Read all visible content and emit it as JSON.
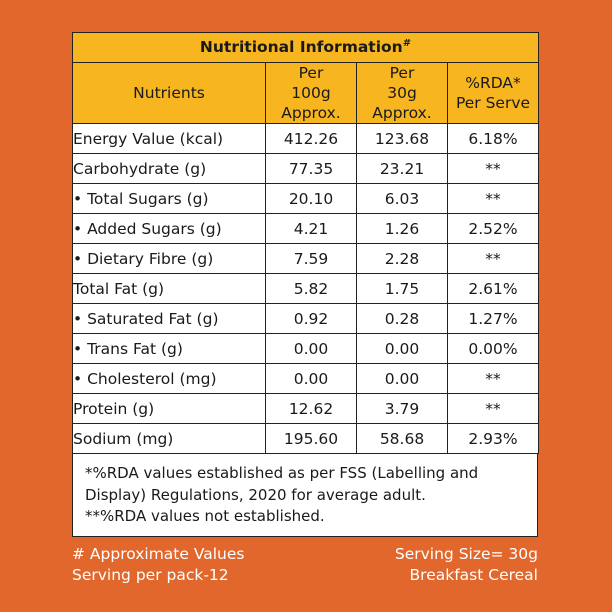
{
  "title": "Nutritional Information",
  "title_mark": "#",
  "headers": [
    "Nutrients",
    "Per 100g Approx.",
    "Per 30g Approx.",
    "%RDA* Per Serve"
  ],
  "rows": [
    {
      "name": "Energy Value (kcal)",
      "per100": "412.26",
      "per30": "123.68",
      "rda": "6.18%"
    },
    {
      "name": "Carbohydrate (g)",
      "per100": "77.35",
      "per30": "23.21",
      "rda": "**"
    },
    {
      "name": "• Total Sugars (g)",
      "per100": "20.10",
      "per30": "6.03",
      "rda": "**"
    },
    {
      "name": "• Added Sugars (g)",
      "per100": "4.21",
      "per30": "1.26",
      "rda": "2.52%"
    },
    {
      "name": "• Dietary Fibre (g)",
      "per100": "7.59",
      "per30": "2.28",
      "rda": "**"
    },
    {
      "name": "Total Fat (g)",
      "per100": "5.82",
      "per30": "1.75",
      "rda": "2.61%"
    },
    {
      "name": "• Saturated Fat (g)",
      "per100": "0.92",
      "per30": "0.28",
      "rda": "1.27%"
    },
    {
      "name": "• Trans Fat (g)",
      "per100": "0.00",
      "per30": "0.00",
      "rda": "0.00%"
    },
    {
      "name": "• Cholesterol (mg)",
      "per100": "0.00",
      "per30": "0.00",
      "rda": "**"
    },
    {
      "name": "Protein (g)",
      "per100": "12.62",
      "per30": "3.79",
      "rda": "**"
    },
    {
      "name": "Sodium (mg)",
      "per100": "195.60",
      "per30": "58.68",
      "rda": "2.93%"
    }
  ],
  "footnote": {
    "line1": "*%RDA values established as per FSS (Labelling and",
    "line2": "Display) Regulations, 2020 for average adult.",
    "line3": "**%RDA values not established."
  },
  "bottom": {
    "left1": "# Approximate Values",
    "left2": "Serving per pack-12",
    "right1": "Serving Size= 30g",
    "right2": "Breakfast Cereal"
  },
  "colors": {
    "background": "#E2672C",
    "header": "#F7B520",
    "table": "#FFFFFF"
  }
}
